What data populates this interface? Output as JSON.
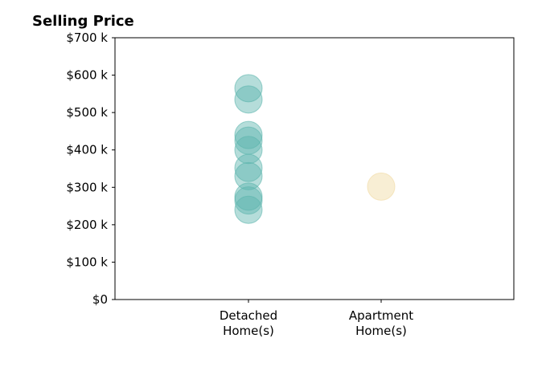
{
  "chart_data": {
    "type": "scatter",
    "title": "Selling Price",
    "xlabel": "",
    "ylabel": "",
    "categories": [
      "Detached\nHome(s)",
      "Apartment\nHome(s)"
    ],
    "ylim": [
      0,
      700000
    ],
    "yticks": [
      {
        "value": 0,
        "label": "$0"
      },
      {
        "value": 100000,
        "label": "$100 k"
      },
      {
        "value": 200000,
        "label": "$200 k"
      },
      {
        "value": 300000,
        "label": "$300 k"
      },
      {
        "value": 400000,
        "label": "$400 k"
      },
      {
        "value": 500000,
        "label": "$500 k"
      },
      {
        "value": 600000,
        "label": "$600 k"
      },
      {
        "value": 700000,
        "label": "$700 k"
      }
    ],
    "grid": false,
    "series": [
      {
        "category": "Detached\nHome(s)",
        "color": "#5ab4ac",
        "values": [
          565000,
          535000,
          440000,
          425000,
          400000,
          352000,
          330000,
          275000,
          265000,
          240000
        ]
      },
      {
        "category": "Apartment\nHome(s)",
        "color": "#f0d9a0",
        "values": [
          302000
        ]
      }
    ]
  }
}
